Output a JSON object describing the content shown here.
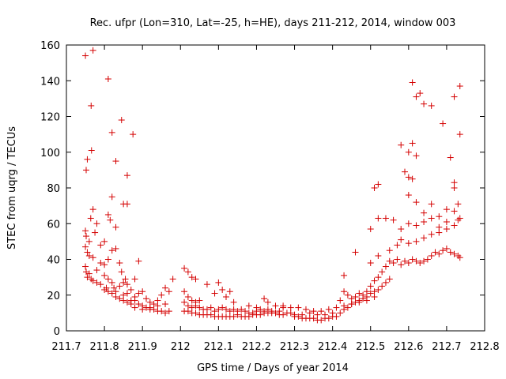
{
  "chart_data": {
    "type": "scatter",
    "title": "Rec. ufpr (Lon=310, Lat=-25, h=HE), days 211-212, 2014, window 003",
    "xlabel": "GPS time / Days of year 2014",
    "ylabel": "STEC from uqrg / TECUs",
    "xlim": [
      211.7,
      212.8
    ],
    "ylim": [
      0,
      160
    ],
    "xticks": [
      "211.7",
      "211.8",
      "211.9",
      "212",
      "212.1",
      "212.2",
      "212.3",
      "212.4",
      "212.5",
      "212.6",
      "212.7",
      "212.8"
    ],
    "yticks": [
      "0",
      "20",
      "40",
      "60",
      "80",
      "100",
      "120",
      "140",
      "160"
    ],
    "marker": "+",
    "color": "#d40000",
    "grid": false,
    "points": [
      [
        211.75,
        154
      ],
      [
        211.755,
        96
      ],
      [
        211.752,
        90
      ],
      [
        211.765,
        126
      ],
      [
        211.77,
        157
      ],
      [
        211.766,
        101
      ],
      [
        211.81,
        141
      ],
      [
        211.82,
        111
      ],
      [
        211.83,
        95
      ],
      [
        211.845,
        118
      ],
      [
        211.875,
        110
      ],
      [
        211.86,
        87
      ],
      [
        211.75,
        56
      ],
      [
        211.752,
        53
      ],
      [
        211.76,
        50
      ],
      [
        211.764,
        63
      ],
      [
        211.77,
        68
      ],
      [
        211.775,
        55
      ],
      [
        211.78,
        60
      ],
      [
        211.79,
        48
      ],
      [
        211.8,
        50
      ],
      [
        211.81,
        65
      ],
      [
        211.815,
        62
      ],
      [
        211.82,
        75
      ],
      [
        211.83,
        58
      ],
      [
        211.85,
        71
      ],
      [
        211.86,
        71
      ],
      [
        211.84,
        38
      ],
      [
        211.89,
        39
      ],
      [
        211.75,
        47
      ],
      [
        211.755,
        44
      ],
      [
        211.76,
        42
      ],
      [
        211.77,
        41
      ],
      [
        211.78,
        34
      ],
      [
        211.79,
        38
      ],
      [
        211.8,
        37
      ],
      [
        211.81,
        40
      ],
      [
        211.82,
        45
      ],
      [
        211.83,
        46
      ],
      [
        211.845,
        33
      ],
      [
        211.855,
        29
      ],
      [
        211.86,
        26
      ],
      [
        211.88,
        29
      ],
      [
        211.75,
        36
      ],
      [
        211.752,
        33
      ],
      [
        211.755,
        30
      ],
      [
        211.76,
        32
      ],
      [
        211.765,
        29
      ],
      [
        211.77,
        28
      ],
      [
        211.78,
        27
      ],
      [
        211.79,
        26
      ],
      [
        211.8,
        31
      ],
      [
        211.805,
        24
      ],
      [
        211.81,
        29
      ],
      [
        211.82,
        27
      ],
      [
        211.825,
        24
      ],
      [
        211.83,
        22
      ],
      [
        211.84,
        25
      ],
      [
        211.85,
        20
      ],
      [
        211.86,
        21
      ],
      [
        211.87,
        23
      ],
      [
        211.88,
        17
      ],
      [
        211.89,
        15
      ],
      [
        211.9,
        14
      ],
      [
        211.91,
        13
      ],
      [
        211.92,
        12
      ],
      [
        211.93,
        12
      ],
      [
        211.94,
        11
      ],
      [
        211.95,
        11
      ],
      [
        211.96,
        10
      ],
      [
        211.97,
        11
      ],
      [
        211.8,
        23
      ],
      [
        211.81,
        22
      ],
      [
        211.82,
        21
      ],
      [
        211.83,
        19
      ],
      [
        211.84,
        18
      ],
      [
        211.85,
        17
      ],
      [
        211.86,
        16
      ],
      [
        211.87,
        17
      ],
      [
        211.88,
        19
      ],
      [
        211.89,
        21
      ],
      [
        211.9,
        22
      ],
      [
        211.91,
        18
      ],
      [
        211.92,
        16
      ],
      [
        211.93,
        15
      ],
      [
        211.94,
        17
      ],
      [
        211.95,
        20
      ],
      [
        211.96,
        24
      ],
      [
        211.97,
        22
      ],
      [
        211.98,
        29
      ],
      [
        211.85,
        27
      ],
      [
        211.87,
        15
      ],
      [
        211.88,
        13
      ],
      [
        211.9,
        12
      ],
      [
        211.92,
        13
      ],
      [
        211.94,
        14
      ],
      [
        211.96,
        15
      ],
      [
        212.01,
        35
      ],
      [
        212.02,
        33
      ],
      [
        212.03,
        30
      ],
      [
        212.04,
        29
      ],
      [
        212.01,
        22
      ],
      [
        212.02,
        19
      ],
      [
        212.03,
        17
      ],
      [
        212.04,
        16
      ],
      [
        212.05,
        17
      ],
      [
        212.07,
        26
      ],
      [
        212.09,
        21
      ],
      [
        212.1,
        27
      ],
      [
        212.11,
        23
      ],
      [
        212.12,
        19
      ],
      [
        212.13,
        22
      ],
      [
        212.14,
        16
      ],
      [
        212.01,
        16
      ],
      [
        212.02,
        14
      ],
      [
        212.03,
        13
      ],
      [
        212.04,
        14
      ],
      [
        212.05,
        13
      ],
      [
        212.06,
        12
      ],
      [
        212.07,
        12
      ],
      [
        212.08,
        13
      ],
      [
        212.09,
        11
      ],
      [
        212.1,
        12
      ],
      [
        212.11,
        13
      ],
      [
        212.12,
        12
      ],
      [
        212.13,
        11
      ],
      [
        212.14,
        12
      ],
      [
        212.15,
        11
      ],
      [
        212.16,
        12
      ],
      [
        212.17,
        11
      ],
      [
        212.18,
        10
      ],
      [
        212.19,
        10
      ],
      [
        212.2,
        11
      ],
      [
        212.21,
        12
      ],
      [
        212.22,
        11
      ],
      [
        212.23,
        12
      ],
      [
        212.24,
        11
      ],
      [
        212.25,
        10
      ],
      [
        212.26,
        11
      ],
      [
        212.27,
        13
      ],
      [
        212.01,
        11
      ],
      [
        212.02,
        11
      ],
      [
        212.03,
        10
      ],
      [
        212.04,
        10
      ],
      [
        212.05,
        9
      ],
      [
        212.06,
        9
      ],
      [
        212.07,
        9
      ],
      [
        212.08,
        9
      ],
      [
        212.09,
        8
      ],
      [
        212.1,
        8
      ],
      [
        212.11,
        8
      ],
      [
        212.12,
        8
      ],
      [
        212.13,
        8
      ],
      [
        212.14,
        8
      ],
      [
        212.15,
        9
      ],
      [
        212.16,
        8
      ],
      [
        212.17,
        8
      ],
      [
        212.18,
        8
      ],
      [
        212.19,
        9
      ],
      [
        212.2,
        9
      ],
      [
        212.21,
        9
      ],
      [
        212.22,
        10
      ],
      [
        212.23,
        10
      ],
      [
        212.24,
        10
      ],
      [
        212.25,
        10
      ],
      [
        212.26,
        9
      ],
      [
        212.27,
        9
      ],
      [
        212.28,
        10
      ],
      [
        212.29,
        10
      ],
      [
        212.18,
        14
      ],
      [
        212.2,
        13
      ],
      [
        212.22,
        18
      ],
      [
        212.23,
        16
      ],
      [
        212.25,
        14
      ],
      [
        212.27,
        14
      ],
      [
        212.29,
        13
      ],
      [
        212.31,
        13
      ],
      [
        212.33,
        12
      ],
      [
        212.35,
        11
      ],
      [
        212.37,
        11
      ],
      [
        212.39,
        12
      ],
      [
        212.41,
        13
      ],
      [
        212.43,
        14
      ],
      [
        212.45,
        15
      ],
      [
        212.47,
        16
      ],
      [
        212.49,
        17
      ],
      [
        212.51,
        19
      ],
      [
        212.3,
        8
      ],
      [
        212.31,
        8
      ],
      [
        212.32,
        7
      ],
      [
        212.33,
        7
      ],
      [
        212.34,
        7
      ],
      [
        212.35,
        7
      ],
      [
        212.36,
        6
      ],
      [
        212.37,
        6
      ],
      [
        212.38,
        7
      ],
      [
        212.39,
        7
      ],
      [
        212.4,
        8
      ],
      [
        212.41,
        8
      ],
      [
        212.42,
        10
      ],
      [
        212.43,
        12
      ],
      [
        212.44,
        13
      ],
      [
        212.45,
        15
      ],
      [
        212.46,
        16
      ],
      [
        212.47,
        17
      ],
      [
        212.48,
        18
      ],
      [
        212.49,
        19
      ],
      [
        212.5,
        21
      ],
      [
        212.51,
        22
      ],
      [
        212.52,
        23
      ],
      [
        212.53,
        25
      ],
      [
        212.54,
        27
      ],
      [
        212.55,
        29
      ],
      [
        212.3,
        9
      ],
      [
        212.32,
        9
      ],
      [
        212.34,
        10
      ],
      [
        212.36,
        9
      ],
      [
        212.38,
        9
      ],
      [
        212.4,
        10
      ],
      [
        212.42,
        17
      ],
      [
        212.43,
        22
      ],
      [
        212.44,
        20
      ],
      [
        212.45,
        18
      ],
      [
        212.46,
        19
      ],
      [
        212.47,
        21
      ],
      [
        212.48,
        20
      ],
      [
        212.49,
        22
      ],
      [
        212.5,
        25
      ],
      [
        212.51,
        28
      ],
      [
        212.52,
        30
      ],
      [
        212.53,
        33
      ],
      [
        212.54,
        36
      ],
      [
        212.55,
        39
      ],
      [
        212.56,
        38
      ],
      [
        212.57,
        40
      ],
      [
        212.58,
        37
      ],
      [
        212.59,
        39
      ],
      [
        212.6,
        38
      ],
      [
        212.61,
        40
      ],
      [
        212.62,
        39
      ],
      [
        212.63,
        38
      ],
      [
        212.64,
        39
      ],
      [
        212.65,
        40
      ],
      [
        212.66,
        42
      ],
      [
        212.67,
        44
      ],
      [
        212.68,
        43
      ],
      [
        212.69,
        45
      ],
      [
        212.7,
        46
      ],
      [
        212.71,
        44
      ],
      [
        212.72,
        43
      ],
      [
        212.73,
        42
      ],
      [
        212.735,
        41
      ],
      [
        212.43,
        31
      ],
      [
        212.46,
        44
      ],
      [
        212.5,
        38
      ],
      [
        212.52,
        42
      ],
      [
        212.55,
        45
      ],
      [
        212.57,
        48
      ],
      [
        212.58,
        51
      ],
      [
        212.6,
        49
      ],
      [
        212.62,
        50
      ],
      [
        212.64,
        52
      ],
      [
        212.66,
        54
      ],
      [
        212.68,
        55
      ],
      [
        212.7,
        57
      ],
      [
        212.72,
        59
      ],
      [
        212.73,
        62
      ],
      [
        212.5,
        57
      ],
      [
        212.52,
        63
      ],
      [
        212.54,
        63
      ],
      [
        212.56,
        62
      ],
      [
        212.58,
        57
      ],
      [
        212.6,
        60
      ],
      [
        212.62,
        59
      ],
      [
        212.64,
        61
      ],
      [
        212.66,
        63
      ],
      [
        212.68,
        58
      ],
      [
        212.7,
        61
      ],
      [
        212.72,
        67
      ],
      [
        212.735,
        63
      ],
      [
        212.51,
        80
      ],
      [
        212.52,
        82
      ],
      [
        212.59,
        89
      ],
      [
        212.6,
        86
      ],
      [
        212.61,
        85
      ],
      [
        212.6,
        76
      ],
      [
        212.62,
        72
      ],
      [
        212.64,
        66
      ],
      [
        212.66,
        71
      ],
      [
        212.68,
        64
      ],
      [
        212.7,
        68
      ],
      [
        212.72,
        80
      ],
      [
        212.73,
        71
      ],
      [
        212.72,
        83
      ],
      [
        212.71,
        97
      ],
      [
        212.58,
        104
      ],
      [
        212.6,
        100
      ],
      [
        212.61,
        105
      ],
      [
        212.62,
        98
      ],
      [
        212.61,
        139
      ],
      [
        212.62,
        131
      ],
      [
        212.63,
        133
      ],
      [
        212.64,
        127
      ],
      [
        212.66,
        126
      ],
      [
        212.69,
        116
      ],
      [
        212.72,
        131
      ],
      [
        212.735,
        137
      ],
      [
        212.735,
        110
      ]
    ]
  }
}
